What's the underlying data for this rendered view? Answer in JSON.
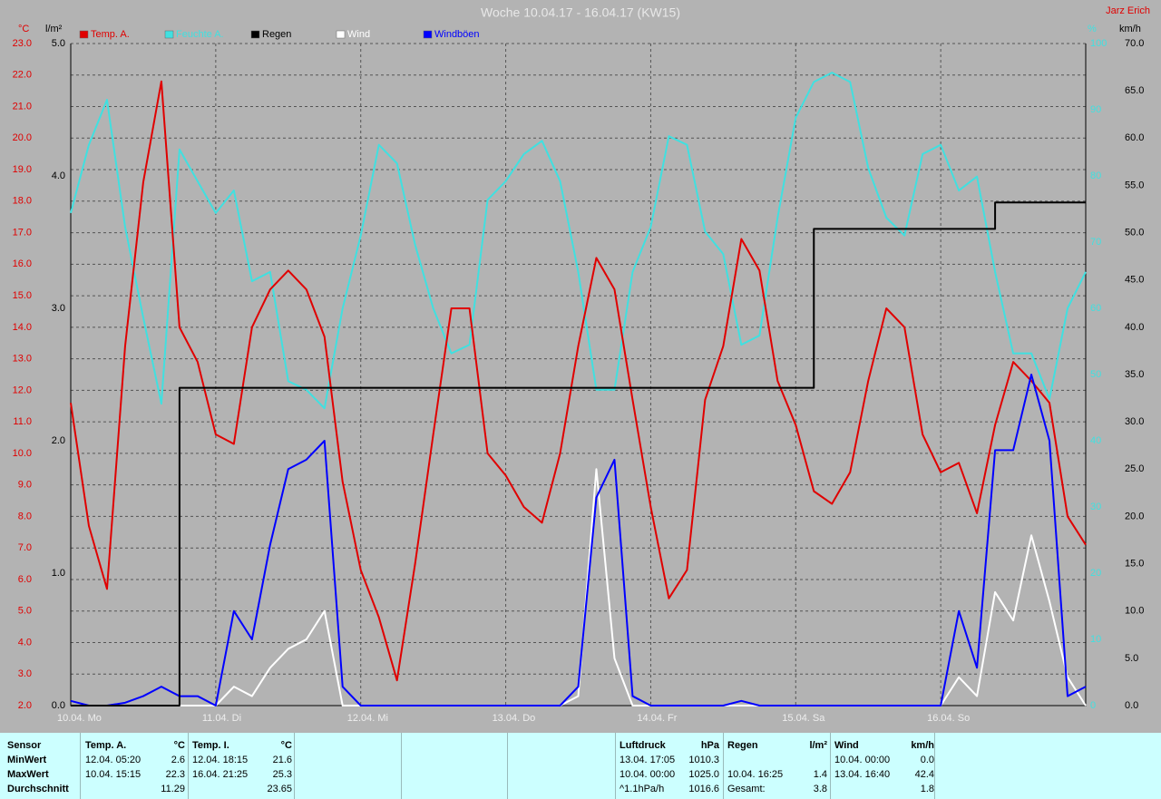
{
  "chart_data": {
    "type": "line",
    "title": "Woche 10.04.17 - 16.04.17 (KW15)",
    "author": "Jarz Erich",
    "y_label": "°C",
    "y2_label": "l/m²",
    "y3_label": "%",
    "y4_label": "km/h",
    "grid": true,
    "x": [
      0,
      3,
      6,
      9,
      12,
      15,
      18,
      21,
      24,
      27,
      30,
      33,
      36,
      39,
      42,
      45,
      48,
      51,
      54,
      57,
      60,
      63,
      66,
      69,
      72,
      75,
      78,
      81,
      84,
      87,
      90,
      93,
      96,
      99,
      102,
      105,
      108,
      111,
      114,
      117,
      120,
      123,
      126,
      129,
      132,
      135,
      138,
      141,
      144,
      147,
      150,
      153,
      156,
      159,
      162,
      165,
      168
    ],
    "xlim": [
      0,
      168
    ],
    "xticks": [
      {
        "value": 0,
        "label": "10.04. Mo"
      },
      {
        "value": 24,
        "label": "11.04. Di"
      },
      {
        "value": 48,
        "label": "12.04. Mi"
      },
      {
        "value": 72,
        "label": "13.04. Do"
      },
      {
        "value": 96,
        "label": "14.04. Fr"
      },
      {
        "value": 120,
        "label": "15.04. Sa"
      },
      {
        "value": 144,
        "label": "16.04. So"
      }
    ],
    "ylim": [
      2,
      23
    ],
    "yticks": [
      {
        "value": 2,
        "label": "2.0"
      },
      {
        "value": 3,
        "label": "3.0"
      },
      {
        "value": 4,
        "label": "4.0"
      },
      {
        "value": 5,
        "label": "5.0"
      },
      {
        "value": 6,
        "label": "6.0"
      },
      {
        "value": 7,
        "label": "7.0"
      },
      {
        "value": 8,
        "label": "8.0"
      },
      {
        "value": 9,
        "label": "9.0"
      },
      {
        "value": 10,
        "label": "10.0"
      },
      {
        "value": 11,
        "label": "11.0"
      },
      {
        "value": 12,
        "label": "12.0"
      },
      {
        "value": 13,
        "label": "13.0"
      },
      {
        "value": 14,
        "label": "14.0"
      },
      {
        "value": 15,
        "label": "15.0"
      },
      {
        "value": 16,
        "label": "16.0"
      },
      {
        "value": 17,
        "label": "17.0"
      },
      {
        "value": 18,
        "label": "18.0"
      },
      {
        "value": 19,
        "label": "19.0"
      },
      {
        "value": 20,
        "label": "20.0"
      },
      {
        "value": 21,
        "label": "21.0"
      },
      {
        "value": 22,
        "label": "22.0"
      },
      {
        "value": 23,
        "label": "23.0"
      }
    ],
    "y2lim": [
      0,
      5
    ],
    "y2ticks": [
      {
        "value": 0,
        "label": "0.0"
      },
      {
        "value": 1,
        "label": "1.0"
      },
      {
        "value": 2,
        "label": "2.0"
      },
      {
        "value": 3,
        "label": "3.0"
      },
      {
        "value": 4,
        "label": "4.0"
      },
      {
        "value": 5,
        "label": "5.0"
      }
    ],
    "y3lim": [
      0,
      100
    ],
    "y3ticks": [
      0,
      10,
      20,
      30,
      40,
      50,
      60,
      70,
      80,
      90,
      100
    ],
    "y4lim": [
      0,
      70
    ],
    "y4ticks": [
      {
        "value": 0,
        "label": "0.0"
      },
      {
        "value": 5,
        "label": "5.0"
      },
      {
        "value": 10,
        "label": "10.0"
      },
      {
        "value": 15,
        "label": "15.0"
      },
      {
        "value": 20,
        "label": "20.0"
      },
      {
        "value": 25,
        "label": "25.0"
      },
      {
        "value": 30,
        "label": "30.0"
      },
      {
        "value": 35,
        "label": "35.0"
      },
      {
        "value": 40,
        "label": "40.0"
      },
      {
        "value": 45,
        "label": "45.0"
      },
      {
        "value": 50,
        "label": "50.0"
      },
      {
        "value": 55,
        "label": "55.0"
      },
      {
        "value": 60,
        "label": "60.0"
      },
      {
        "value": 65,
        "label": "65.0"
      },
      {
        "value": 70,
        "label": "70.0"
      }
    ],
    "series": [
      {
        "name": "Temp. A.",
        "color": "#e00000",
        "axis": "y",
        "values": [
          11.6,
          7.7,
          5.7,
          13.4,
          18.6,
          21.8,
          14.0,
          12.9,
          10.6,
          10.3,
          14.0,
          15.2,
          15.8,
          15.2,
          13.7,
          9.1,
          6.3,
          4.8,
          2.8,
          6.5,
          10.6,
          14.6,
          14.6,
          10.0,
          9.3,
          8.3,
          7.8,
          10.0,
          13.4,
          16.2,
          15.2,
          11.7,
          8.3,
          5.4,
          6.3,
          11.7,
          13.4,
          16.8,
          15.8,
          12.3,
          10.9,
          8.8,
          8.4,
          9.4,
          12.3,
          14.6,
          14.0,
          10.6,
          9.4,
          9.7,
          8.1,
          10.9,
          12.9,
          12.3,
          11.6,
          8.0,
          7.1
        ]
      },
      {
        "name": "Feuchte A.",
        "color": "#40e0e0",
        "axis": "y3",
        "values": [
          74.4,
          84.7,
          91.5,
          72.3,
          58.6,
          45.6,
          84.0,
          79.2,
          74.4,
          77.8,
          64.1,
          65.5,
          49.0,
          47.7,
          44.9,
          60.0,
          71.0,
          84.7,
          81.9,
          69.6,
          60.0,
          53.2,
          54.5,
          76.4,
          79.2,
          83.3,
          85.3,
          79.2,
          65.5,
          47.7,
          47.7,
          65.5,
          72.3,
          86.0,
          84.7,
          71.6,
          68.2,
          54.5,
          55.9,
          73.7,
          88.8,
          94.2,
          95.6,
          94.2,
          81.2,
          73.7,
          71.0,
          83.3,
          84.7,
          77.8,
          79.9,
          65.5,
          53.2,
          53.2,
          46.3,
          60.0,
          65.5
        ]
      },
      {
        "name": "Regen",
        "color": "#000000",
        "axis": "y2",
        "step": true,
        "values": [
          0,
          0,
          0,
          0,
          0,
          0,
          2.4,
          2.4,
          2.4,
          2.4,
          2.4,
          2.4,
          2.4,
          2.4,
          2.4,
          2.4,
          2.4,
          2.4,
          2.4,
          2.4,
          2.4,
          2.4,
          2.4,
          2.4,
          2.4,
          2.4,
          2.4,
          2.4,
          2.4,
          2.4,
          2.4,
          2.4,
          2.4,
          2.4,
          2.4,
          2.4,
          2.4,
          2.4,
          2.4,
          2.4,
          2.4,
          3.6,
          3.6,
          3.6,
          3.6,
          3.6,
          3.6,
          3.6,
          3.6,
          3.6,
          3.6,
          3.8,
          3.8,
          3.8,
          3.8,
          3.8,
          3.8
        ]
      },
      {
        "name": "Wind",
        "color": "#ffffff",
        "axis": "y4",
        "values": [
          0,
          0,
          0,
          0,
          0,
          0,
          0,
          0,
          0,
          2,
          1,
          4,
          6,
          7,
          10,
          0,
          0,
          0,
          0,
          0,
          0,
          0,
          0,
          0,
          0,
          0,
          0,
          0,
          1,
          25,
          5,
          0,
          0,
          0,
          0,
          0,
          0,
          0,
          0,
          0,
          0,
          0,
          0,
          0,
          0,
          0,
          0,
          0,
          0,
          3,
          1,
          12,
          9,
          18,
          11,
          3,
          0
        ]
      },
      {
        "name": "Windböen",
        "color": "#0000ff",
        "axis": "y4",
        "values": [
          0.5,
          0,
          0,
          0.3,
          1,
          2,
          1,
          1,
          0,
          10,
          7,
          17,
          25,
          26,
          28,
          2,
          0,
          0,
          0,
          0,
          0,
          0,
          0,
          0,
          0,
          0,
          0,
          0,
          2,
          22,
          26,
          1,
          0,
          0,
          0,
          0,
          0,
          0.5,
          0,
          0,
          0,
          0,
          0,
          0,
          0,
          0,
          0,
          0,
          0,
          10,
          4,
          27,
          27,
          35,
          28,
          1,
          2
        ]
      }
    ]
  },
  "table": {
    "row_labels": [
      "Sensor",
      "MinWert",
      "MaxWert",
      "Durchschnitt"
    ],
    "blocks": [
      {
        "label": "Temp. A.",
        "unit": "°C",
        "rows": [
          {
            "when": "12.04. 05:20",
            "value": "2.6"
          },
          {
            "when": "10.04. 15:15",
            "value": "22.3"
          },
          {
            "value": "11.29"
          }
        ]
      },
      {
        "label": "Temp. I.",
        "unit": "°C",
        "rows": [
          {
            "when": "12.04. 18:15",
            "value": "21.6"
          },
          {
            "when": "16.04. 21:25",
            "value": "25.3"
          },
          {
            "value": "23.65"
          }
        ]
      },
      {
        "label": "Luftdruck",
        "unit": "hPa",
        "rows": [
          {
            "when": "13.04. 17:05",
            "value": "1010.3"
          },
          {
            "when": "10.04. 00:00",
            "value": "1025.0"
          },
          {
            "when": "^1.1hPa/h",
            "value": "1016.6"
          }
        ]
      },
      {
        "label": "Regen",
        "unit": "l/m²",
        "rows": [
          null,
          {
            "when": "10.04. 16:25",
            "value": "1.4"
          },
          {
            "when": "Gesamt:",
            "value": "3.8"
          }
        ]
      },
      {
        "label": "Wind",
        "unit": "km/h",
        "rows": [
          {
            "when": "10.04. 00:00",
            "value": "0.0"
          },
          {
            "when": "13.04. 16:40",
            "value": "42.4"
          },
          {
            "value": "1.8"
          }
        ]
      }
    ]
  }
}
